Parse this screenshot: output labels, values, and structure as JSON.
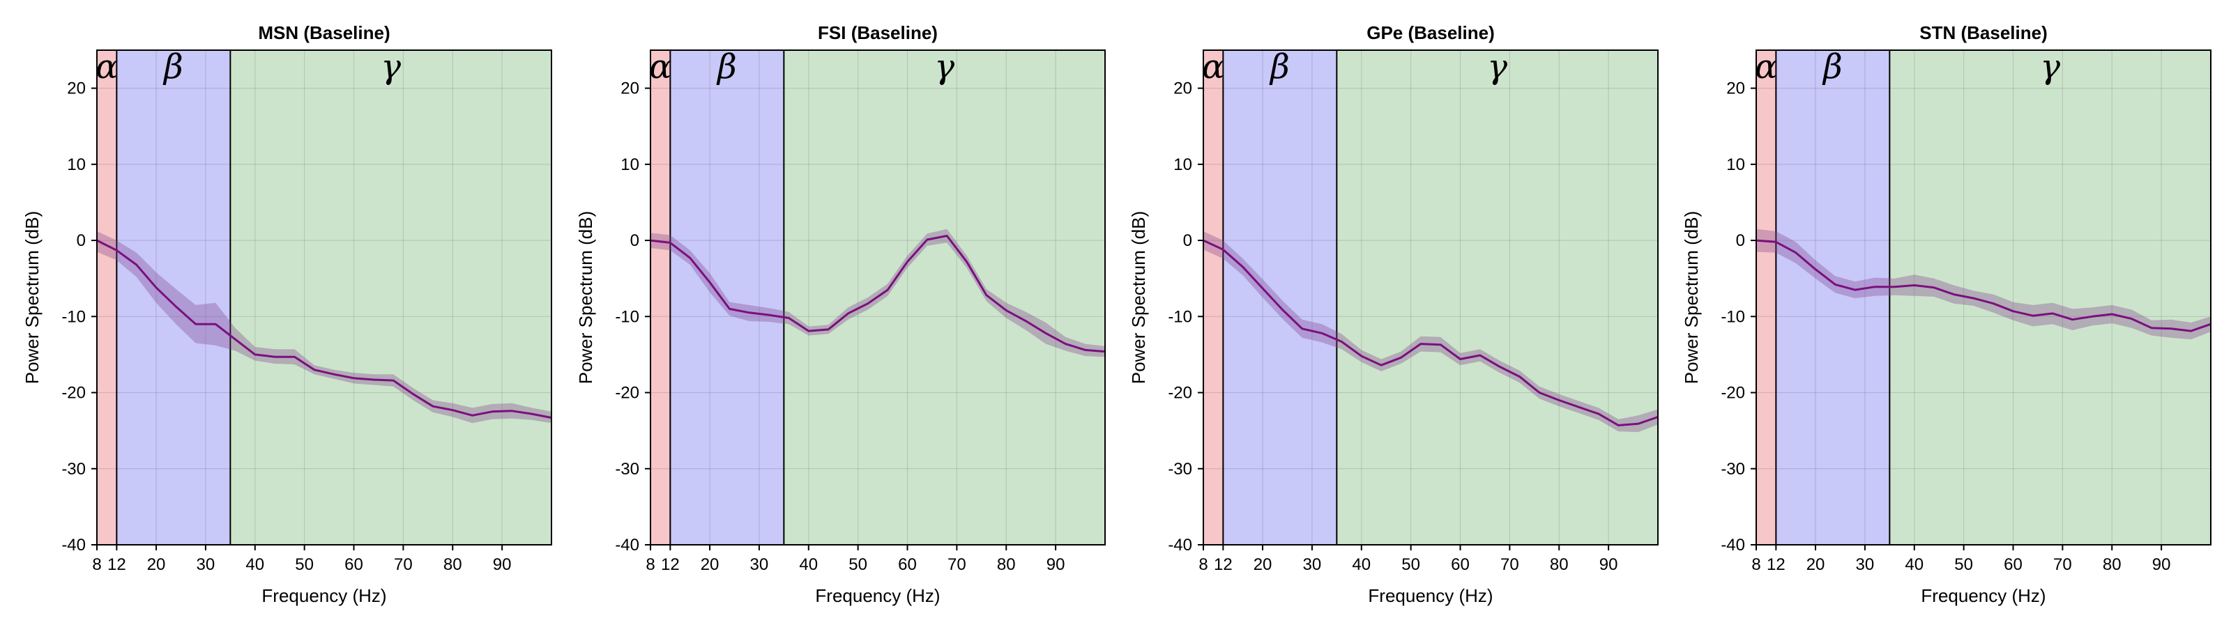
{
  "chart_data": [
    {
      "type": "line",
      "title": "MSN (Baseline)",
      "xlabel": "Frequency (Hz)",
      "ylabel": "Power Spectrum (dB)",
      "xlim": [
        8,
        100
      ],
      "ylim": [
        -40,
        25
      ],
      "xticks": [
        8,
        12,
        20,
        30,
        40,
        50,
        60,
        70,
        80,
        90
      ],
      "yticks": [
        -40,
        -30,
        -20,
        -10,
        0,
        10,
        20
      ],
      "grid": true,
      "bands": [
        {
          "label": "α",
          "range": [
            8,
            12
          ],
          "color": "#f6c6c8"
        },
        {
          "label": "β",
          "range": [
            12,
            35
          ],
          "color": "#c8c8f9"
        },
        {
          "label": "γ",
          "range": [
            35,
            100
          ],
          "color": "#cde4cc"
        }
      ],
      "series": [
        {
          "x": [
            8,
            12,
            16,
            20,
            24,
            28,
            32,
            36,
            40,
            44,
            48,
            52,
            56,
            60,
            64,
            68,
            72,
            76,
            80,
            84,
            88,
            92,
            96,
            100
          ],
          "y": [
            0,
            -1.3,
            -3.2,
            -6.2,
            -8.7,
            -11,
            -11,
            -13,
            -15,
            -15.3,
            -15.3,
            -17,
            -17.6,
            -18.1,
            -18.3,
            -18.4,
            -20.2,
            -21.8,
            -22.3,
            -23,
            -22.5,
            -22.4,
            -22.8,
            -23.3
          ],
          "lower": [
            -1.5,
            -2.6,
            -4.8,
            -8.2,
            -11,
            -13.5,
            -13.8,
            -14.5,
            -15.8,
            -16.2,
            -16.3,
            -17.6,
            -18.2,
            -18.8,
            -19,
            -19.2,
            -21,
            -22.6,
            -23.2,
            -24,
            -23.5,
            -23.4,
            -23.6,
            -24
          ],
          "upper": [
            1.2,
            0,
            -1.6,
            -4.2,
            -6.4,
            -8.5,
            -8.2,
            -11.5,
            -14,
            -14.3,
            -14.3,
            -16.4,
            -17,
            -17.4,
            -17.6,
            -17.6,
            -19.4,
            -21,
            -21.4,
            -22,
            -21.5,
            -21.4,
            -22,
            -22.5
          ]
        }
      ]
    },
    {
      "type": "line",
      "title": "FSI (Baseline)",
      "xlabel": "Frequency (Hz)",
      "ylabel": "Power Spectrum (dB)",
      "xlim": [
        8,
        100
      ],
      "ylim": [
        -40,
        25
      ],
      "xticks": [
        8,
        12,
        20,
        30,
        40,
        50,
        60,
        70,
        80,
        90
      ],
      "yticks": [
        -40,
        -30,
        -20,
        -10,
        0,
        10,
        20
      ],
      "grid": true,
      "bands": [
        {
          "label": "α",
          "range": [
            8,
            12
          ],
          "color": "#f6c6c8"
        },
        {
          "label": "β",
          "range": [
            12,
            35
          ],
          "color": "#c8c8f9"
        },
        {
          "label": "γ",
          "range": [
            35,
            100
          ],
          "color": "#cde4cc"
        }
      ],
      "series": [
        {
          "x": [
            8,
            12,
            16,
            20,
            24,
            28,
            32,
            36,
            40,
            44,
            48,
            52,
            56,
            60,
            64,
            68,
            72,
            76,
            80,
            84,
            88,
            92,
            96,
            100
          ],
          "y": [
            0,
            -0.3,
            -2.3,
            -5.5,
            -9,
            -9.5,
            -9.8,
            -10.2,
            -11.9,
            -11.7,
            -9.6,
            -8.3,
            -6.5,
            -2.8,
            0.1,
            0.6,
            -2.8,
            -7.2,
            -9.2,
            -10.6,
            -12.2,
            -13.6,
            -14.4,
            -14.6
          ],
          "lower": [
            -1,
            -1.3,
            -3.2,
            -6.8,
            -9.9,
            -10.6,
            -10.7,
            -11,
            -12.5,
            -12.3,
            -10.4,
            -9.1,
            -7.3,
            -3.6,
            -0.7,
            -0.3,
            -3.6,
            -8,
            -10.2,
            -11.8,
            -13.6,
            -14.5,
            -15.2,
            -15.3
          ],
          "upper": [
            1,
            0.7,
            -1.3,
            -4.3,
            -8.1,
            -8.5,
            -8.9,
            -9.4,
            -11.3,
            -11.1,
            -8.8,
            -7.5,
            -5.7,
            -2,
            0.9,
            1.5,
            -2,
            -6.4,
            -8.2,
            -9.4,
            -10.8,
            -12.7,
            -13.6,
            -13.9
          ]
        }
      ]
    },
    {
      "type": "line",
      "title": "GPe (Baseline)",
      "xlabel": "Frequency (Hz)",
      "ylabel": "Power Spectrum (dB)",
      "xlim": [
        8,
        100
      ],
      "ylim": [
        -40,
        25
      ],
      "xticks": [
        8,
        12,
        20,
        30,
        40,
        50,
        60,
        70,
        80,
        90
      ],
      "yticks": [
        -40,
        -30,
        -20,
        -10,
        0,
        10,
        20
      ],
      "grid": true,
      "bands": [
        {
          "label": "α",
          "range": [
            8,
            12
          ],
          "color": "#f6c6c8"
        },
        {
          "label": "β",
          "range": [
            12,
            35
          ],
          "color": "#c8c8f9"
        },
        {
          "label": "γ",
          "range": [
            35,
            100
          ],
          "color": "#cde4cc"
        }
      ],
      "series": [
        {
          "x": [
            8,
            12,
            16,
            20,
            24,
            28,
            32,
            36,
            40,
            44,
            48,
            52,
            56,
            60,
            64,
            68,
            72,
            76,
            80,
            84,
            88,
            92,
            96,
            100
          ],
          "y": [
            0,
            -1.2,
            -3.5,
            -6.3,
            -9.1,
            -11.6,
            -12.2,
            -13.3,
            -15.2,
            -16.4,
            -15.4,
            -13.6,
            -13.7,
            -15.6,
            -15.1,
            -16.6,
            -17.9,
            -20,
            -21,
            -21.9,
            -22.8,
            -24.3,
            -24.1,
            -23.2
          ],
          "lower": [
            -1.2,
            -2.4,
            -4.6,
            -7.5,
            -10.3,
            -12.8,
            -13.4,
            -14.3,
            -16,
            -17.2,
            -16.2,
            -14.6,
            -14.7,
            -16.4,
            -15.9,
            -17.4,
            -18.7,
            -20.8,
            -21.8,
            -22.7,
            -23.6,
            -25.1,
            -25.2,
            -24.2
          ],
          "upper": [
            1.2,
            0,
            -2.4,
            -5.1,
            -7.9,
            -10.4,
            -11,
            -12.3,
            -14.4,
            -15.6,
            -14.6,
            -12.6,
            -12.7,
            -14.8,
            -14.3,
            -15.8,
            -17.1,
            -19.2,
            -20.2,
            -21.1,
            -22,
            -23.5,
            -23,
            -22.2
          ]
        }
      ]
    },
    {
      "type": "line",
      "title": "STN (Baseline)",
      "xlabel": "Frequency (Hz)",
      "ylabel": "Power Spectrum (dB)",
      "xlim": [
        8,
        100
      ],
      "ylim": [
        -40,
        25
      ],
      "xticks": [
        8,
        12,
        20,
        30,
        40,
        50,
        60,
        70,
        80,
        90
      ],
      "yticks": [
        -40,
        -30,
        -20,
        -10,
        0,
        10,
        20
      ],
      "grid": true,
      "bands": [
        {
          "label": "α",
          "range": [
            8,
            12
          ],
          "color": "#f6c6c8"
        },
        {
          "label": "β",
          "range": [
            12,
            35
          ],
          "color": "#c8c8f9"
        },
        {
          "label": "γ",
          "range": [
            35,
            100
          ],
          "color": "#cde4cc"
        }
      ],
      "series": [
        {
          "x": [
            8,
            12,
            16,
            20,
            24,
            28,
            32,
            36,
            40,
            44,
            48,
            52,
            56,
            60,
            64,
            68,
            72,
            76,
            80,
            84,
            88,
            92,
            96,
            100
          ],
          "y": [
            0,
            -0.2,
            -1.6,
            -3.8,
            -5.8,
            -6.5,
            -6.1,
            -6.1,
            -5.9,
            -6.2,
            -7.1,
            -7.6,
            -8.3,
            -9.3,
            -9.9,
            -9.6,
            -10.4,
            -10,
            -9.7,
            -10.3,
            -11.5,
            -11.6,
            -11.9,
            -11
          ],
          "lower": [
            -1.5,
            -1.6,
            -3,
            -5,
            -6.9,
            -7.6,
            -7.3,
            -7.2,
            -7.3,
            -7.4,
            -8.3,
            -8.6,
            -9.5,
            -10.5,
            -11.3,
            -11,
            -11.8,
            -11.2,
            -10.9,
            -11.5,
            -12.5,
            -12.8,
            -13,
            -12
          ],
          "upper": [
            1.5,
            1.2,
            -0.2,
            -2.6,
            -4.7,
            -5.4,
            -4.9,
            -5,
            -4.5,
            -5,
            -5.9,
            -6.6,
            -7.1,
            -8.1,
            -8.5,
            -8.2,
            -9,
            -8.8,
            -8.5,
            -9.1,
            -10.5,
            -10.4,
            -10.8,
            -10
          ]
        }
      ]
    }
  ]
}
